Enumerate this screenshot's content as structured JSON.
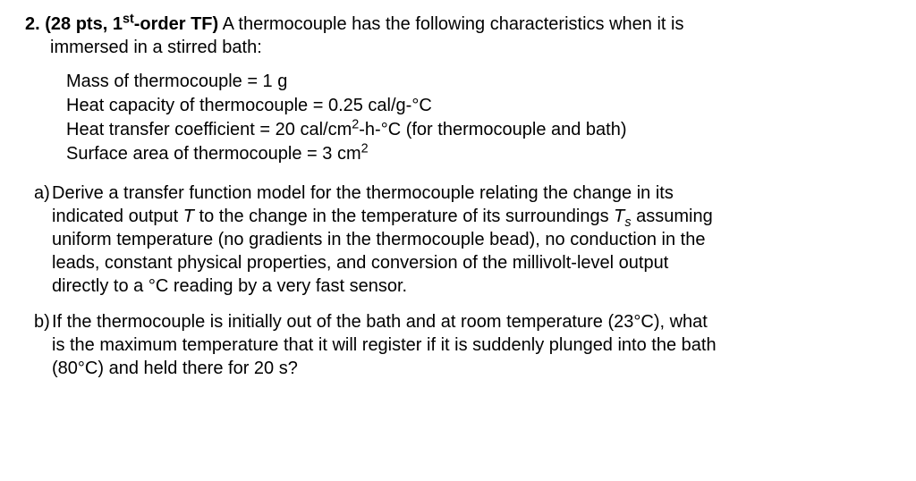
{
  "question": {
    "number": "2.",
    "points": "(28 pts, 1",
    "ord": "st",
    "tf": "-order TF)",
    "intro_a": " A thermocouple has the following characteristics when it is",
    "intro_b": "immersed in a stirred bath:"
  },
  "given": {
    "line1": "Mass of thermocouple = 1 g",
    "line2_pre": "Heat capacity of thermocouple = 0.25 cal/g-",
    "line2_deg": "°C",
    "line3_pre": "Heat transfer coefficient = 20 cal/cm",
    "line3_sup": "2",
    "line3_mid": "-h-",
    "line3_deg": "°C",
    "line3_post": " (for thermocouple and bath)",
    "line4_pre": "Surface area of thermocouple = 3 cm",
    "line4_sup": "2"
  },
  "partA": {
    "label": "a)",
    "l1a": "Derive a transfer function model for the thermocouple relating the change in its",
    "l2a": "indicated output ",
    "l2T": "T",
    "l2b": " to the change in the temperature of its surroundings ",
    "l2Ts": "T",
    "l2sub": "s",
    "l2c": " assuming",
    "l3": "uniform temperature (no gradients in the thermocouple bead), no conduction in the",
    "l4": "leads, constant physical properties, and conversion of the millivolt-level output",
    "l5a": "directly to a ",
    "l5deg": "°C",
    "l5b": " reading by a very fast sensor."
  },
  "partB": {
    "label": "b)",
    "l1a": "If the thermocouple is initially out of the bath and at room temperature (23",
    "l1deg": "°C",
    "l1b": "), what",
    "l2": "is the maximum temperature that it will register if it is suddenly plunged into the bath",
    "l3a": "(80",
    "l3deg": "°C",
    "l3b": ") and held there for 20 s?"
  }
}
